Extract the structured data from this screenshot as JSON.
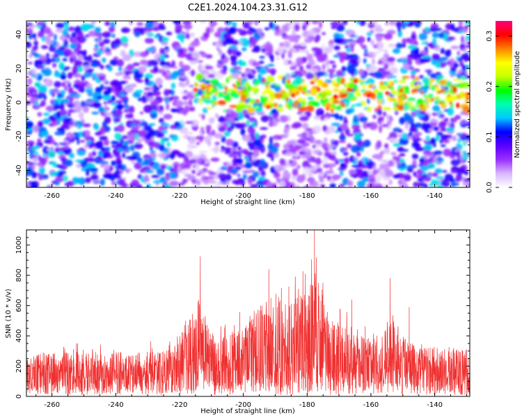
{
  "title": "C2E1.2024.104.23.31.G12",
  "chart_data": [
    {
      "type": "heatmap",
      "xlabel": "Height of straight line (km)",
      "ylabel": "Frequency (Hz)",
      "xlim": [
        -268,
        -129
      ],
      "ylim": [
        -50,
        48
      ],
      "x_ticks": [
        -260,
        -240,
        -220,
        -200,
        -180,
        -160,
        -140
      ],
      "y_ticks": [
        -40,
        -20,
        0,
        20,
        40
      ],
      "colorbar": {
        "label": "Normalized spectral amplitude",
        "range": [
          0,
          0.33
        ],
        "ticks": [
          0.0,
          0.1,
          0.2,
          0.3
        ],
        "colors": [
          "#ffffff",
          "#d8b8ff",
          "#9b30ff",
          "#5a00ff",
          "#0000ff",
          "#00c8ff",
          "#00ffb0",
          "#00ff00",
          "#c8ff00",
          "#ffff00",
          "#ff8000",
          "#ff0000",
          "#ff0080"
        ]
      },
      "features": [
        {
          "x_range": [
            -215,
            -128
          ],
          "freq_center": 5,
          "freq_halfwidth": 10,
          "peak_amplitude": 0.3
        }
      ]
    },
    {
      "type": "line",
      "xlabel": "Height of straight line (km)",
      "ylabel": "SNR (10 * v/v)",
      "xlim": [
        -268,
        -129
      ],
      "ylim": [
        0,
        1100
      ],
      "x_ticks": [
        -260,
        -240,
        -220,
        -200,
        -180,
        -160,
        -140
      ],
      "y_ticks": [
        0,
        200,
        400,
        600,
        800,
        1000
      ],
      "color": "#f03030",
      "envelope": {
        "x": [
          -268,
          -250,
          -235,
          -222,
          -216,
          -214,
          -212,
          -208,
          -200,
          -192,
          -186,
          -180,
          -178,
          -176,
          -172,
          -165,
          -160,
          -156,
          -154,
          -150,
          -145,
          -138,
          -132,
          -129
        ],
        "baseline": [
          150,
          150,
          150,
          160,
          230,
          280,
          250,
          200,
          210,
          230,
          250,
          270,
          300,
          260,
          240,
          200,
          190,
          210,
          230,
          190,
          160,
          160,
          160,
          160
        ],
        "upper": [
          280,
          300,
          290,
          320,
          550,
          700,
          500,
          380,
          480,
          620,
          650,
          700,
          900,
          650,
          550,
          420,
          380,
          430,
          500,
          400,
          320,
          330,
          330,
          320
        ]
      },
      "peaks": [
        {
          "x": -213.5,
          "y": 925
        },
        {
          "x": -192,
          "y": 840
        },
        {
          "x": -177.7,
          "y": 1100
        },
        {
          "x": -176.5,
          "y": 750
        },
        {
          "x": -154,
          "y": 780
        },
        {
          "x": -148,
          "y": 590
        },
        {
          "x": -166,
          "y": 640
        }
      ]
    }
  ]
}
